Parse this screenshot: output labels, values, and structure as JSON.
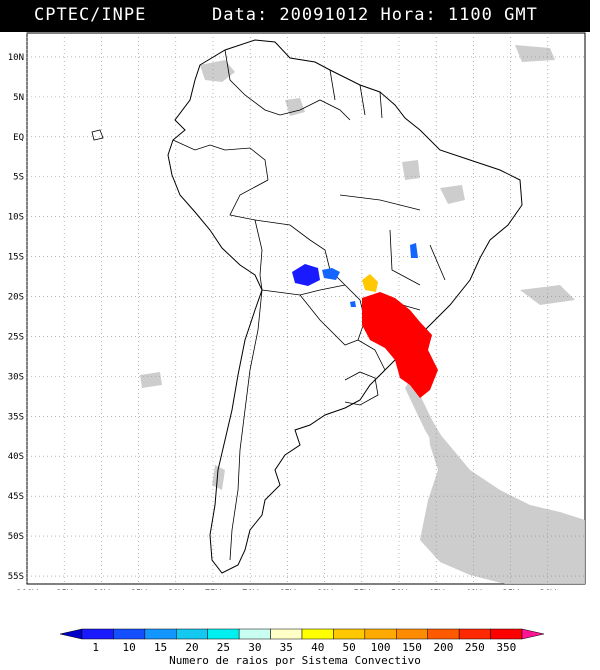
{
  "header": {
    "source": "CPTEC/INPE",
    "datetime": "Data: 20091012 Hora: 1100 GMT"
  },
  "map": {
    "lon_range": [
      -100,
      -25
    ],
    "lat_range": [
      -56,
      13
    ],
    "lon_ticks": [
      {
        "value": -100,
        "label": "100W"
      },
      {
        "value": -95,
        "label": "95W"
      },
      {
        "value": -90,
        "label": "90W"
      },
      {
        "value": -85,
        "label": "85W"
      },
      {
        "value": -80,
        "label": "80W"
      },
      {
        "value": -75,
        "label": "75W"
      },
      {
        "value": -70,
        "label": "70W"
      },
      {
        "value": -65,
        "label": "65W"
      },
      {
        "value": -60,
        "label": "60W"
      },
      {
        "value": -55,
        "label": "55W"
      },
      {
        "value": -50,
        "label": "50W"
      },
      {
        "value": -45,
        "label": "45W"
      },
      {
        "value": -40,
        "label": "40W"
      },
      {
        "value": -35,
        "label": "35W"
      },
      {
        "value": -30,
        "label": "30W"
      }
    ],
    "lat_ticks": [
      {
        "value": 10,
        "label": "10N"
      },
      {
        "value": 5,
        "label": "5N"
      },
      {
        "value": 0,
        "label": "EQ"
      },
      {
        "value": -5,
        "label": "5S"
      },
      {
        "value": -10,
        "label": "10S"
      },
      {
        "value": -15,
        "label": "15S"
      },
      {
        "value": -20,
        "label": "20S"
      },
      {
        "value": -25,
        "label": "25S"
      },
      {
        "value": -30,
        "label": "30S"
      },
      {
        "value": -35,
        "label": "35S"
      },
      {
        "value": -40,
        "label": "40S"
      },
      {
        "value": -45,
        "label": "45S"
      },
      {
        "value": -50,
        "label": "50S"
      },
      {
        "value": -55,
        "label": "55S"
      }
    ],
    "grid": "dotted",
    "cloud_color": "#c8c8c8",
    "systems": [
      {
        "name": "convective-system-dark-blue",
        "color": "#1a1aff",
        "lon": -62,
        "lat": -17.5
      },
      {
        "name": "convective-system-blue",
        "color": "#1464ff",
        "lon": -59,
        "lat": -17.8
      },
      {
        "name": "convective-system-blue-small",
        "color": "#1464ff",
        "lon": -47.5,
        "lat": -15.8
      },
      {
        "name": "convective-system-yellow",
        "color": "#ffc800",
        "lon": -55.5,
        "lat": -18.5
      },
      {
        "name": "convective-system-blue-tiny",
        "color": "#1464ff",
        "lon": -56.5,
        "lat": -21.3
      },
      {
        "name": "convective-system-red",
        "color": "#ff0000",
        "lon": -51,
        "lat": -25
      }
    ]
  },
  "legend": {
    "labels": [
      "1",
      "10",
      "15",
      "20",
      "25",
      "30",
      "35",
      "40",
      "50",
      "100",
      "150",
      "200",
      "250",
      "350"
    ],
    "colors": [
      "#1a1aff",
      "#1450ff",
      "#1496ff",
      "#14c8f0",
      "#00f0f0",
      "#c8fff0",
      "#ffffc8",
      "#ffff00",
      "#ffc800",
      "#ffaa00",
      "#ff8c00",
      "#ff5a00",
      "#ff2800",
      "#ff0000"
    ],
    "low_color": "#0000c8",
    "high_color": "#ff1496",
    "caption": "Numero de raios por Sistema Convectivo"
  }
}
